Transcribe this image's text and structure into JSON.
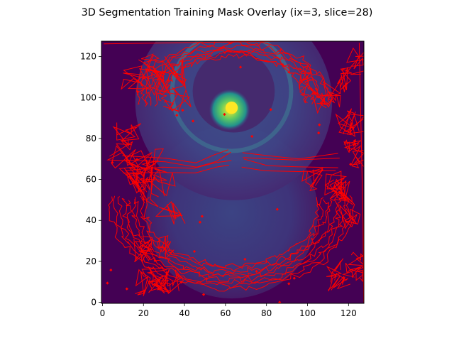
{
  "figure": {
    "title": "3D Segmentation Training Mask Overlay (ix=3, slice=28)"
  },
  "chart_data": {
    "type": "heatmap",
    "title": "3D Segmentation Training Mask Overlay (ix=3, slice=28)",
    "xlabel": "",
    "ylabel": "",
    "colormap": "viridis",
    "overlay": {
      "type": "contour",
      "color": "#ff0000"
    },
    "image_size": [
      128,
      128
    ],
    "xlim": [
      -0.5,
      127.5
    ],
    "ylim": [
      127.5,
      -0.5
    ],
    "x_ticks": [
      0,
      20,
      40,
      60,
      80,
      100,
      120
    ],
    "x_tick_labels": [
      "0",
      "20",
      "40",
      "60",
      "80",
      "100",
      "120"
    ],
    "y_ticks": [
      0,
      20,
      40,
      60,
      80,
      100,
      120
    ],
    "y_tick_labels": [
      "0",
      "20",
      "40",
      "60",
      "80",
      "100",
      "120"
    ],
    "grid": false,
    "legend": "none"
  }
}
